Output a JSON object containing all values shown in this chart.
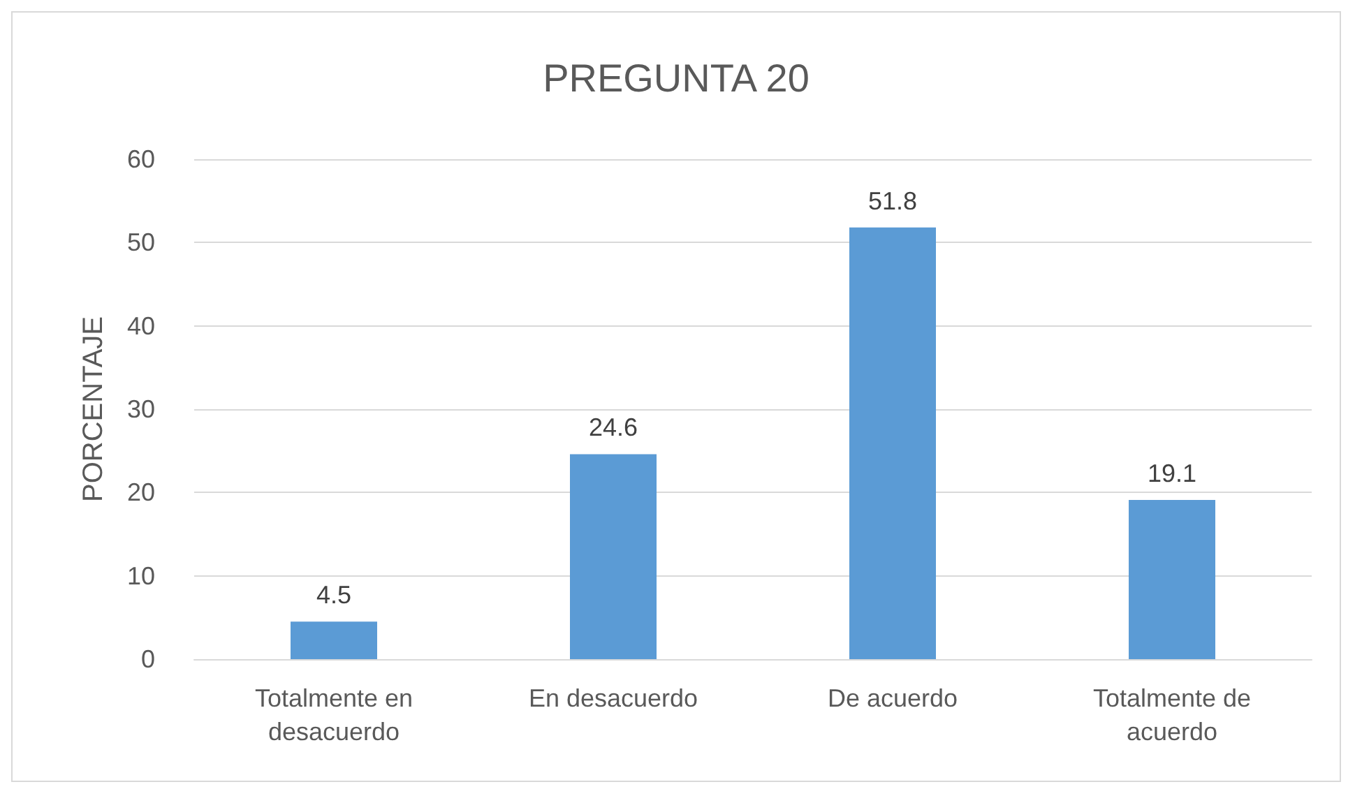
{
  "chart_data": {
    "type": "bar",
    "title": "PREGUNTA 20",
    "ylabel": "PORCENTAJE",
    "categories": [
      "Totalmente en desacuerdo",
      "En desacuerdo",
      "De acuerdo",
      "Totalmente de acuerdo"
    ],
    "values": [
      4.5,
      24.6,
      51.8,
      19.1
    ],
    "color": "#5b9bd5",
    "ylim": [
      0,
      60
    ],
    "yticks": [
      0,
      10,
      20,
      30,
      40,
      50,
      60
    ],
    "grid": "y",
    "data_labels": true
  }
}
